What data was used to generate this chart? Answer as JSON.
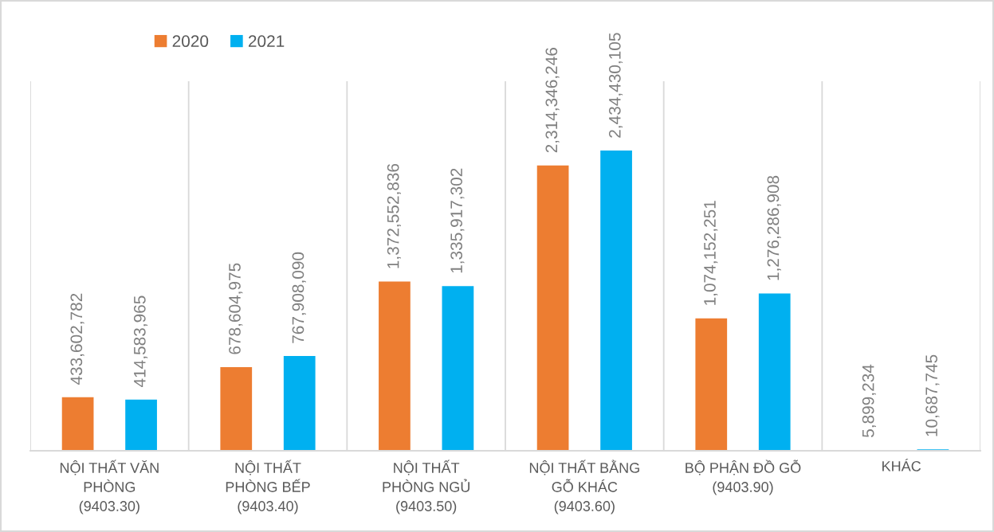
{
  "chart_data": {
    "type": "bar",
    "categories": [
      "NỘI THẤT VĂN\nPHÒNG\n(9403.30)",
      "NỘI THẤT\nPHÒNG BẾP\n(9403.40)",
      "NỘI THẤT\nPHÒNG NGỦ\n(9403.50)",
      "NỘI THẤT BẰNG\nGỖ KHÁC\n(9403.60)",
      "BỘ PHẬN ĐỒ GỖ\n(9403.90)",
      "KHÁC"
    ],
    "series": [
      {
        "name": "2020",
        "color": "#ed7d31",
        "values": [
          433602782,
          678604975,
          1372552836,
          2314346246,
          1074152251,
          5899234
        ],
        "value_labels": [
          "433,602,782",
          "678,604,975",
          "1,372,552,836",
          "2,314,346,246",
          "1,074,152,251",
          "5,899,234"
        ]
      },
      {
        "name": "2021",
        "color": "#00b0f0",
        "values": [
          414583965,
          767908090,
          1335917302,
          2434430105,
          1276286908,
          10687745
        ],
        "value_labels": [
          "414,583,965",
          "767,908,090",
          "1,335,917,302",
          "2,434,430,105",
          "1,276,286,908",
          "10,687,745"
        ]
      }
    ],
    "grid": "x",
    "legend": "top left",
    "tick_labels": "x"
  }
}
